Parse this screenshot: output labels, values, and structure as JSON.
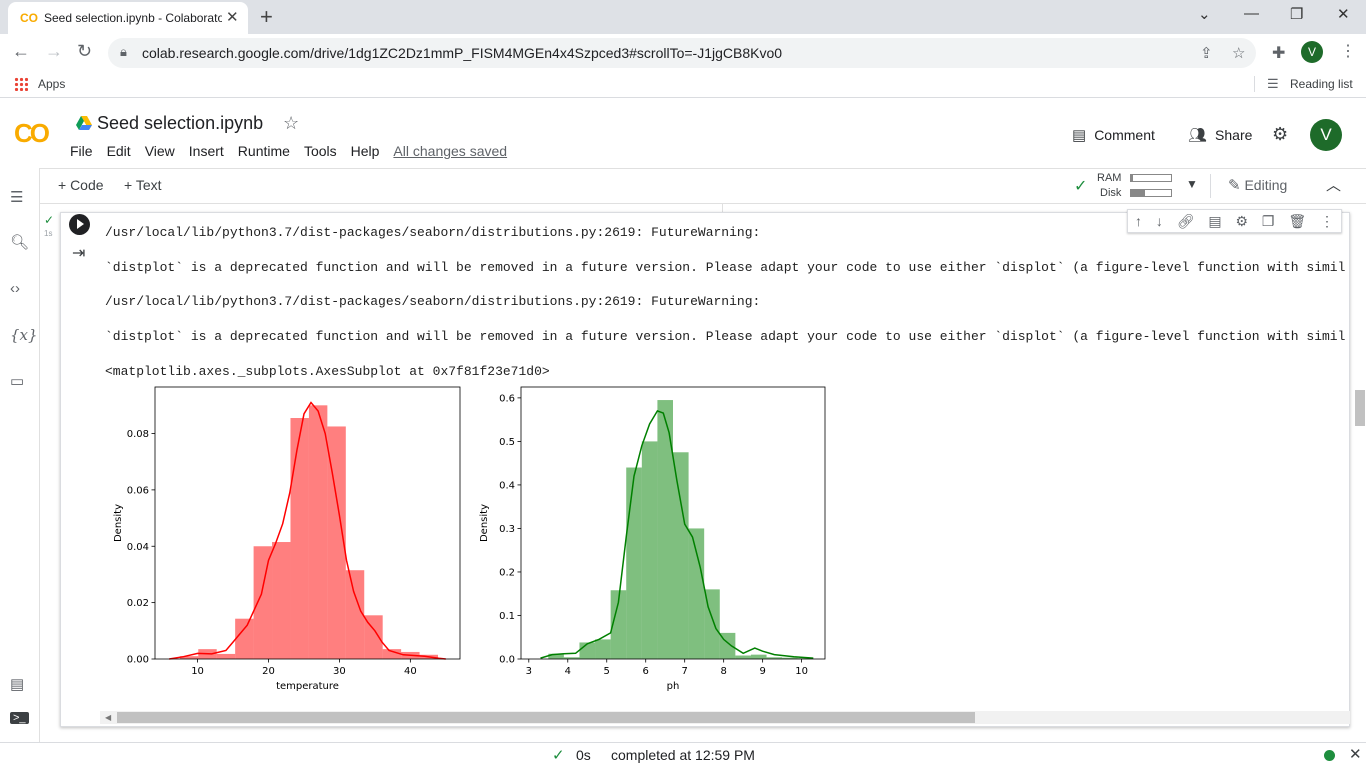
{
  "browser": {
    "tab_title": "Seed selection.ipynb - Colaboratory",
    "url": "colab.research.google.com/drive/1dg1ZC2Dz1mmP_FISM4MGEn4x4Szpced3#scrollTo=-J1jgCB8Kvo0",
    "bookmark_apps": "Apps",
    "reading_list": "Reading list",
    "profile_initial": "V"
  },
  "colab": {
    "logo": "CO",
    "notebook_title": "Seed selection.ipynb",
    "menu": [
      "File",
      "Edit",
      "View",
      "Insert",
      "Runtime",
      "Tools",
      "Help"
    ],
    "save_status": "All changes saved",
    "comment_label": "Comment",
    "share_label": "Share",
    "avatar_initial": "V",
    "add_code": "+ Code",
    "add_text": "+ Text",
    "ram_label": "RAM",
    "disk_label": "Disk",
    "ram_usage": 0.05,
    "disk_usage": 0.35,
    "editing_label": "Editing"
  },
  "cell": {
    "exec_time": "1s",
    "outputs": [
      "/usr/local/lib/python3.7/dist-packages/seaborn/distributions.py:2619: FutureWarning:",
      "`distplot` is a deprecated function and will be removed in a future version. Please adapt your code to use either `displot` (a figure-level function with similar",
      "/usr/local/lib/python3.7/dist-packages/seaborn/distributions.py:2619: FutureWarning:",
      "`distplot` is a deprecated function and will be removed in a future version. Please adapt your code to use either `displot` (a figure-level function with similar",
      "<matplotlib.axes._subplots.AxesSubplot at 0x7f81f23e71d0>"
    ]
  },
  "status": {
    "duration": "0s",
    "completed": "completed at 12:59 PM"
  },
  "chart_data": [
    {
      "type": "bar",
      "subtype": "histogram+kde",
      "color": "#ff0000",
      "xlabel": "temperature",
      "ylabel": "Density",
      "xlim": [
        4,
        47
      ],
      "ylim": [
        0,
        0.0965
      ],
      "xticks": [
        10,
        20,
        30,
        40
      ],
      "yticks": [
        0.0,
        0.02,
        0.04,
        0.06,
        0.08
      ],
      "ytick_labels": [
        "0.00",
        "0.02",
        "0.04",
        "0.06",
        "0.08"
      ],
      "bins": [
        [
          7.5,
          10.1,
          0.001
        ],
        [
          10.1,
          12.7,
          0.0035
        ],
        [
          12.7,
          15.3,
          0.0018
        ],
        [
          15.3,
          17.9,
          0.0143
        ],
        [
          17.9,
          20.5,
          0.04
        ],
        [
          20.5,
          23.1,
          0.0415
        ],
        [
          23.1,
          25.7,
          0.0855
        ],
        [
          25.7,
          28.3,
          0.09
        ],
        [
          28.3,
          30.9,
          0.0825
        ],
        [
          30.9,
          33.5,
          0.0315
        ],
        [
          33.5,
          36.1,
          0.0155
        ],
        [
          36.1,
          38.7,
          0.0035
        ],
        [
          38.7,
          41.3,
          0.0025
        ],
        [
          41.3,
          43.9,
          0.0015
        ]
      ],
      "kde": [
        [
          6,
          0
        ],
        [
          8,
          0.0008
        ],
        [
          10,
          0.002
        ],
        [
          12,
          0.0018
        ],
        [
          14,
          0.003
        ],
        [
          15,
          0.006
        ],
        [
          17,
          0.012
        ],
        [
          19,
          0.023
        ],
        [
          20,
          0.035
        ],
        [
          21,
          0.041
        ],
        [
          22,
          0.048
        ],
        [
          23,
          0.059
        ],
        [
          24,
          0.074
        ],
        [
          25,
          0.087
        ],
        [
          26,
          0.091
        ],
        [
          27,
          0.088
        ],
        [
          28,
          0.08
        ],
        [
          29,
          0.066
        ],
        [
          30,
          0.051
        ],
        [
          31,
          0.035
        ],
        [
          32,
          0.024
        ],
        [
          33,
          0.017
        ],
        [
          34,
          0.013
        ],
        [
          35,
          0.01
        ],
        [
          36,
          0.006
        ],
        [
          37,
          0.003
        ],
        [
          39,
          0.0015
        ],
        [
          42,
          0.001
        ],
        [
          44,
          0.0003
        ],
        [
          45,
          0
        ]
      ]
    },
    {
      "type": "bar",
      "subtype": "histogram+kde",
      "color": "#008000",
      "xlabel": "ph",
      "ylabel": "Density",
      "xlim": [
        2.8,
        10.6
      ],
      "ylim": [
        0,
        0.625
      ],
      "xticks": [
        3,
        4,
        5,
        6,
        7,
        8,
        9,
        10
      ],
      "yticks": [
        0.0,
        0.1,
        0.2,
        0.3,
        0.4,
        0.5,
        0.6
      ],
      "ytick_labels": [
        "0.0",
        "0.1",
        "0.2",
        "0.3",
        "0.4",
        "0.5",
        "0.6"
      ],
      "bins": [
        [
          3.5,
          3.9,
          0.012
        ],
        [
          3.9,
          4.3,
          0.004
        ],
        [
          4.3,
          4.7,
          0.038
        ],
        [
          4.7,
          5.1,
          0.045
        ],
        [
          5.1,
          5.5,
          0.158
        ],
        [
          5.5,
          5.9,
          0.44
        ],
        [
          5.9,
          6.3,
          0.5
        ],
        [
          6.3,
          6.7,
          0.595
        ],
        [
          6.7,
          7.1,
          0.475
        ],
        [
          7.1,
          7.5,
          0.3
        ],
        [
          7.5,
          7.9,
          0.16
        ],
        [
          7.9,
          8.3,
          0.06
        ],
        [
          8.3,
          8.7,
          0.008
        ],
        [
          8.7,
          9.1,
          0.01
        ],
        [
          9.1,
          9.5,
          0.004
        ],
        [
          9.5,
          9.9,
          0.003
        ],
        [
          9.9,
          10.3,
          0.002
        ]
      ],
      "kde": [
        [
          3.3,
          0.002
        ],
        [
          3.6,
          0.01
        ],
        [
          3.9,
          0.012
        ],
        [
          4.2,
          0.013
        ],
        [
          4.5,
          0.035
        ],
        [
          4.8,
          0.045
        ],
        [
          5.1,
          0.06
        ],
        [
          5.3,
          0.13
        ],
        [
          5.5,
          0.28
        ],
        [
          5.7,
          0.42
        ],
        [
          5.9,
          0.49
        ],
        [
          6.1,
          0.54
        ],
        [
          6.3,
          0.57
        ],
        [
          6.45,
          0.565
        ],
        [
          6.6,
          0.52
        ],
        [
          6.8,
          0.41
        ],
        [
          7.0,
          0.31
        ],
        [
          7.2,
          0.28
        ],
        [
          7.4,
          0.21
        ],
        [
          7.6,
          0.12
        ],
        [
          7.8,
          0.07
        ],
        [
          8.0,
          0.045
        ],
        [
          8.2,
          0.03
        ],
        [
          8.5,
          0.013
        ],
        [
          8.8,
          0.025
        ],
        [
          9.0,
          0.018
        ],
        [
          9.3,
          0.01
        ],
        [
          9.8,
          0.005
        ],
        [
          10.3,
          0.002
        ]
      ]
    }
  ]
}
